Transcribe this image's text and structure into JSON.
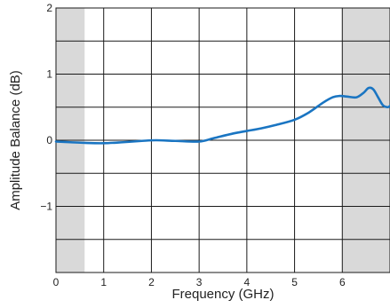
{
  "chart_data": {
    "type": "line",
    "xlabel": "Frequency (GHz)",
    "ylabel": "Amplitude Balance (dB)",
    "xlim": [
      0,
      7
    ],
    "ylim": [
      -2,
      2
    ],
    "x_ticks": [
      0,
      1,
      2,
      3,
      4,
      5,
      6
    ],
    "y_ticks": [
      -1,
      0,
      1,
      2
    ],
    "y_tick_labels": [
      "−1",
      "0",
      "1",
      "2"
    ],
    "grid": true,
    "shaded_regions": [
      {
        "x_start": 0,
        "x_end": 0.6
      },
      {
        "x_start": 6,
        "x_end": 7
      }
    ],
    "shade_color": "#d9d9d9",
    "series": [
      {
        "color": "#1a75c2",
        "x": [
          0,
          0.3,
          0.6,
          1.0,
          1.4,
          1.8,
          2.1,
          2.5,
          3.0,
          3.3,
          3.7,
          4.0,
          4.3,
          4.6,
          5.0,
          5.3,
          5.6,
          5.8,
          5.95,
          6.1,
          6.3,
          6.45,
          6.55,
          6.65,
          6.75,
          6.85,
          6.95,
          7.0
        ],
        "y": [
          -0.02,
          -0.03,
          -0.04,
          -0.045,
          -0.03,
          -0.01,
          0.0,
          -0.01,
          -0.02,
          0.03,
          0.1,
          0.14,
          0.18,
          0.23,
          0.31,
          0.42,
          0.57,
          0.65,
          0.67,
          0.66,
          0.65,
          0.72,
          0.79,
          0.77,
          0.65,
          0.53,
          0.5,
          0.52
        ]
      }
    ]
  }
}
